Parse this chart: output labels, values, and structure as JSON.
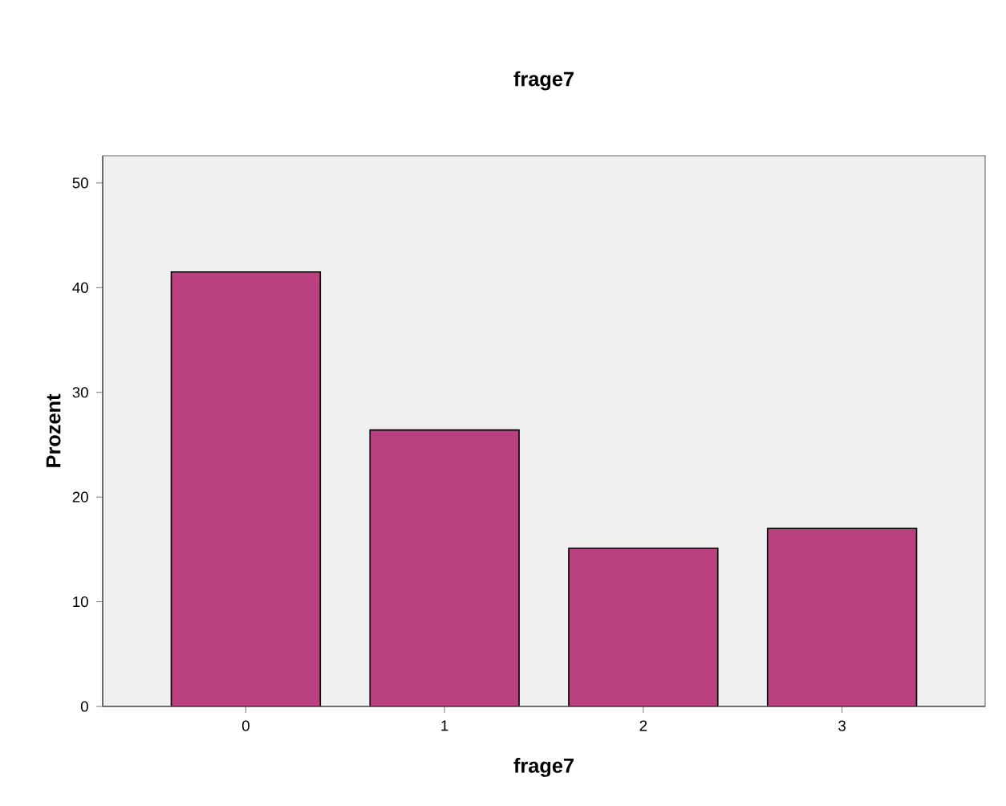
{
  "chart_data": {
    "type": "bar",
    "title": "frage7",
    "xlabel": "frage7",
    "ylabel": "Prozent",
    "categories": [
      "0",
      "1",
      "2",
      "3"
    ],
    "values": [
      41.5,
      26.4,
      15.1,
      17.0
    ],
    "color": "#bb4080",
    "ylim": [
      0,
      52.6
    ],
    "yticks": [
      0,
      10,
      20,
      30,
      40,
      50
    ]
  }
}
